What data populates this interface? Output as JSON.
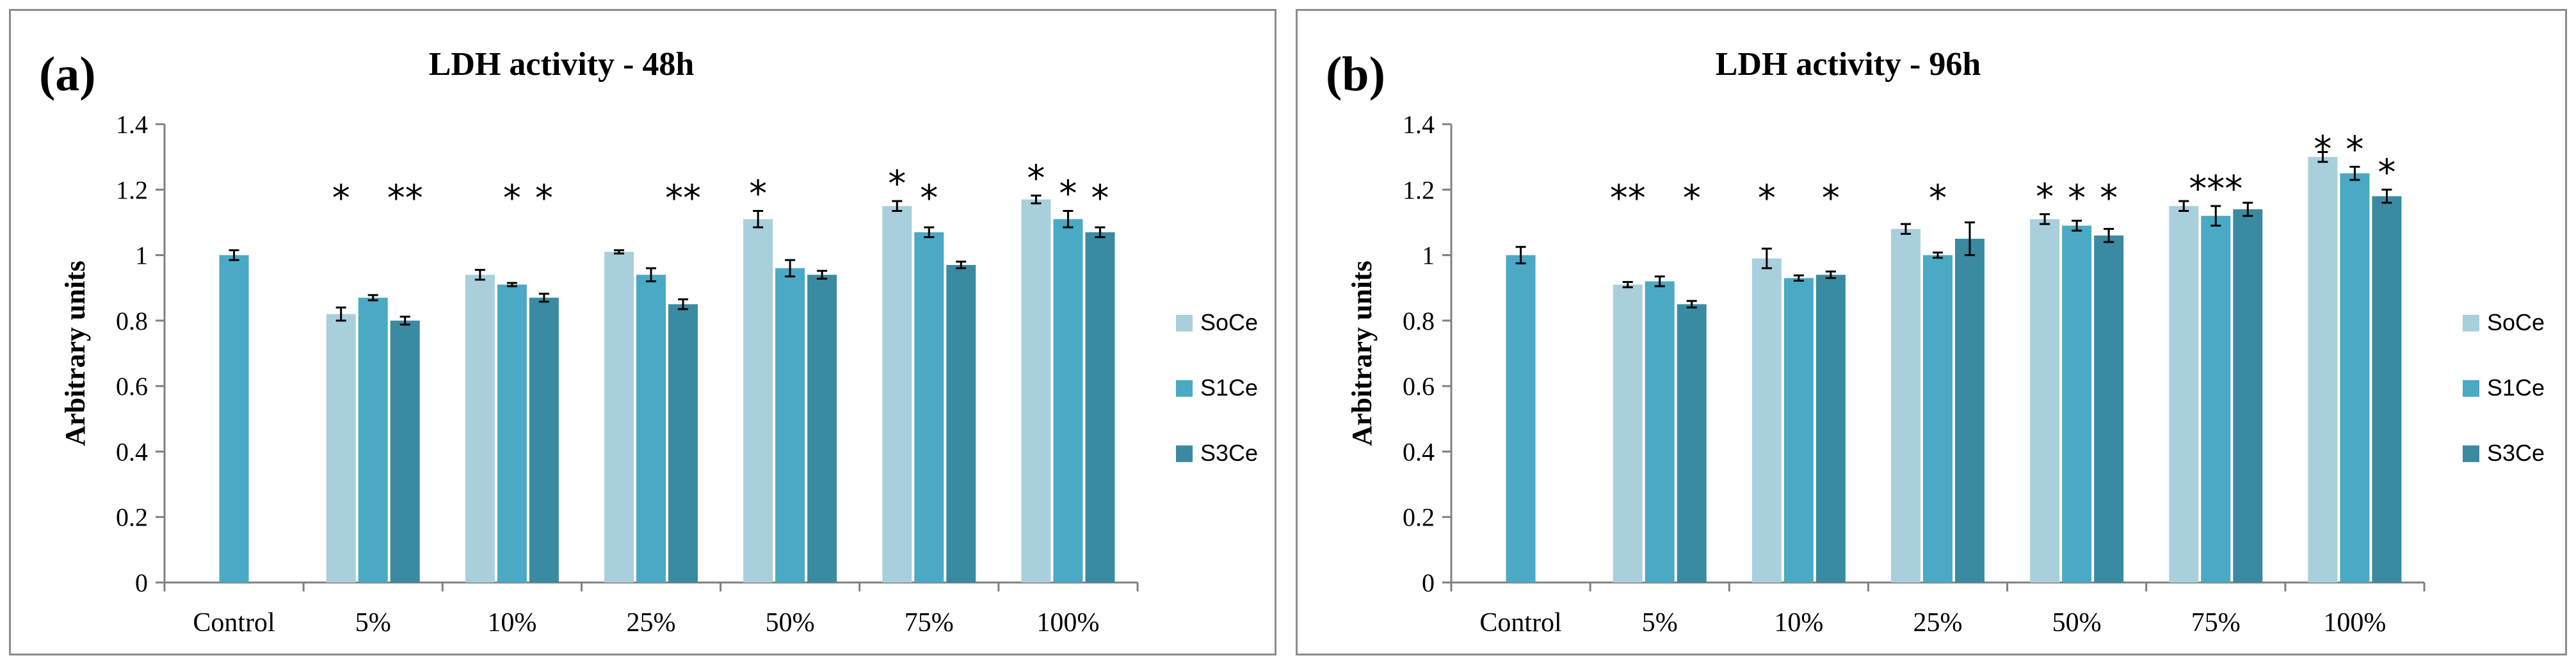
{
  "colors": {
    "SoCe": "#a9cfdc",
    "S1Ce": "#4aa9c4",
    "S3Ce": "#3a8aa2",
    "axis": "#808080",
    "error": "#000000"
  },
  "chart_data": [
    {
      "panel_label": "(a)",
      "type": "bar",
      "title": "LDH activity - 48h",
      "xlabel": "",
      "ylabel": "Arbitrary units",
      "ylim": [
        0,
        1.4
      ],
      "yticks": [
        "0",
        "0.2",
        "0.4",
        "0.6",
        "0.8",
        "1",
        "1.2",
        "1.4"
      ],
      "grid": false,
      "legend_position": "right",
      "categories": [
        "Control",
        "5%",
        "10%",
        "25%",
        "50%",
        "75%",
        "100%"
      ],
      "series": [
        {
          "name": "SoCe",
          "values": [
            null,
            0.82,
            0.94,
            1.01,
            1.11,
            1.15,
            1.17
          ],
          "errors": [
            null,
            0.02,
            0.015,
            0.005,
            0.025,
            0.015,
            0.012
          ]
        },
        {
          "name": "S1Ce",
          "values": [
            1.0,
            0.87,
            0.91,
            0.94,
            0.96,
            1.07,
            1.11
          ],
          "errors": [
            0.015,
            0.008,
            0.005,
            0.02,
            0.025,
            0.015,
            0.025
          ]
        },
        {
          "name": "S3Ce",
          "values": [
            null,
            0.8,
            0.87,
            0.85,
            0.94,
            0.97,
            1.07
          ],
          "errors": [
            null,
            0.012,
            0.012,
            0.015,
            0.012,
            0.01,
            0.015
          ]
        }
      ],
      "significance": [
        {
          "category": 1,
          "series": 0,
          "text": "*"
        },
        {
          "category": 1,
          "series": 2,
          "text": "**"
        },
        {
          "category": 2,
          "series": 1,
          "text": "*"
        },
        {
          "category": 2,
          "series": 2,
          "text": "*"
        },
        {
          "category": 3,
          "series": 2,
          "text": "**"
        },
        {
          "category": 4,
          "series": 0,
          "text": "*"
        },
        {
          "category": 5,
          "series": 0,
          "text": "*"
        },
        {
          "category": 5,
          "series": 1,
          "text": "*"
        },
        {
          "category": 6,
          "series": 0,
          "text": "*"
        },
        {
          "category": 6,
          "series": 1,
          "text": "*"
        },
        {
          "category": 6,
          "series": 2,
          "text": "*"
        }
      ]
    },
    {
      "panel_label": "(b)",
      "type": "bar",
      "title": "LDH activity - 96h",
      "xlabel": "",
      "ylabel": "Arbitrary units",
      "ylim": [
        0,
        1.4
      ],
      "yticks": [
        "0",
        "0.2",
        "0.4",
        "0.6",
        "0.8",
        "1",
        "1.2",
        "1.4"
      ],
      "grid": false,
      "legend_position": "right",
      "categories": [
        "Control",
        "5%",
        "10%",
        "25%",
        "50%",
        "75%",
        "100%"
      ],
      "series": [
        {
          "name": "SoCe",
          "values": [
            null,
            0.91,
            0.99,
            1.08,
            1.11,
            1.15,
            1.3
          ],
          "errors": [
            null,
            0.008,
            0.03,
            0.015,
            0.015,
            0.015,
            0.015
          ]
        },
        {
          "name": "S1Ce",
          "values": [
            1.0,
            0.92,
            0.93,
            1.0,
            1.09,
            1.12,
            1.25
          ],
          "errors": [
            0.025,
            0.015,
            0.008,
            0.008,
            0.015,
            0.03,
            0.02
          ]
        },
        {
          "name": "S3Ce",
          "values": [
            null,
            0.85,
            0.94,
            1.05,
            1.06,
            1.14,
            1.18
          ],
          "errors": [
            null,
            0.01,
            0.01,
            0.05,
            0.02,
            0.02,
            0.02
          ]
        }
      ],
      "significance": [
        {
          "category": 1,
          "series": 0,
          "text": "**"
        },
        {
          "category": 1,
          "series": 2,
          "text": "*"
        },
        {
          "category": 2,
          "series": 0,
          "text": "*"
        },
        {
          "category": 2,
          "series": 2,
          "text": "*"
        },
        {
          "category": 3,
          "series": 1,
          "text": "*"
        },
        {
          "category": 4,
          "series": 0,
          "text": "*"
        },
        {
          "category": 4,
          "series": 1,
          "text": "*"
        },
        {
          "category": 4,
          "series": 2,
          "text": "*"
        },
        {
          "category": 5,
          "series": 1,
          "text": "***"
        },
        {
          "category": 6,
          "series": 0,
          "text": "*"
        },
        {
          "category": 6,
          "series": 1,
          "text": "*"
        },
        {
          "category": 6,
          "series": 2,
          "text": "*"
        }
      ]
    }
  ]
}
